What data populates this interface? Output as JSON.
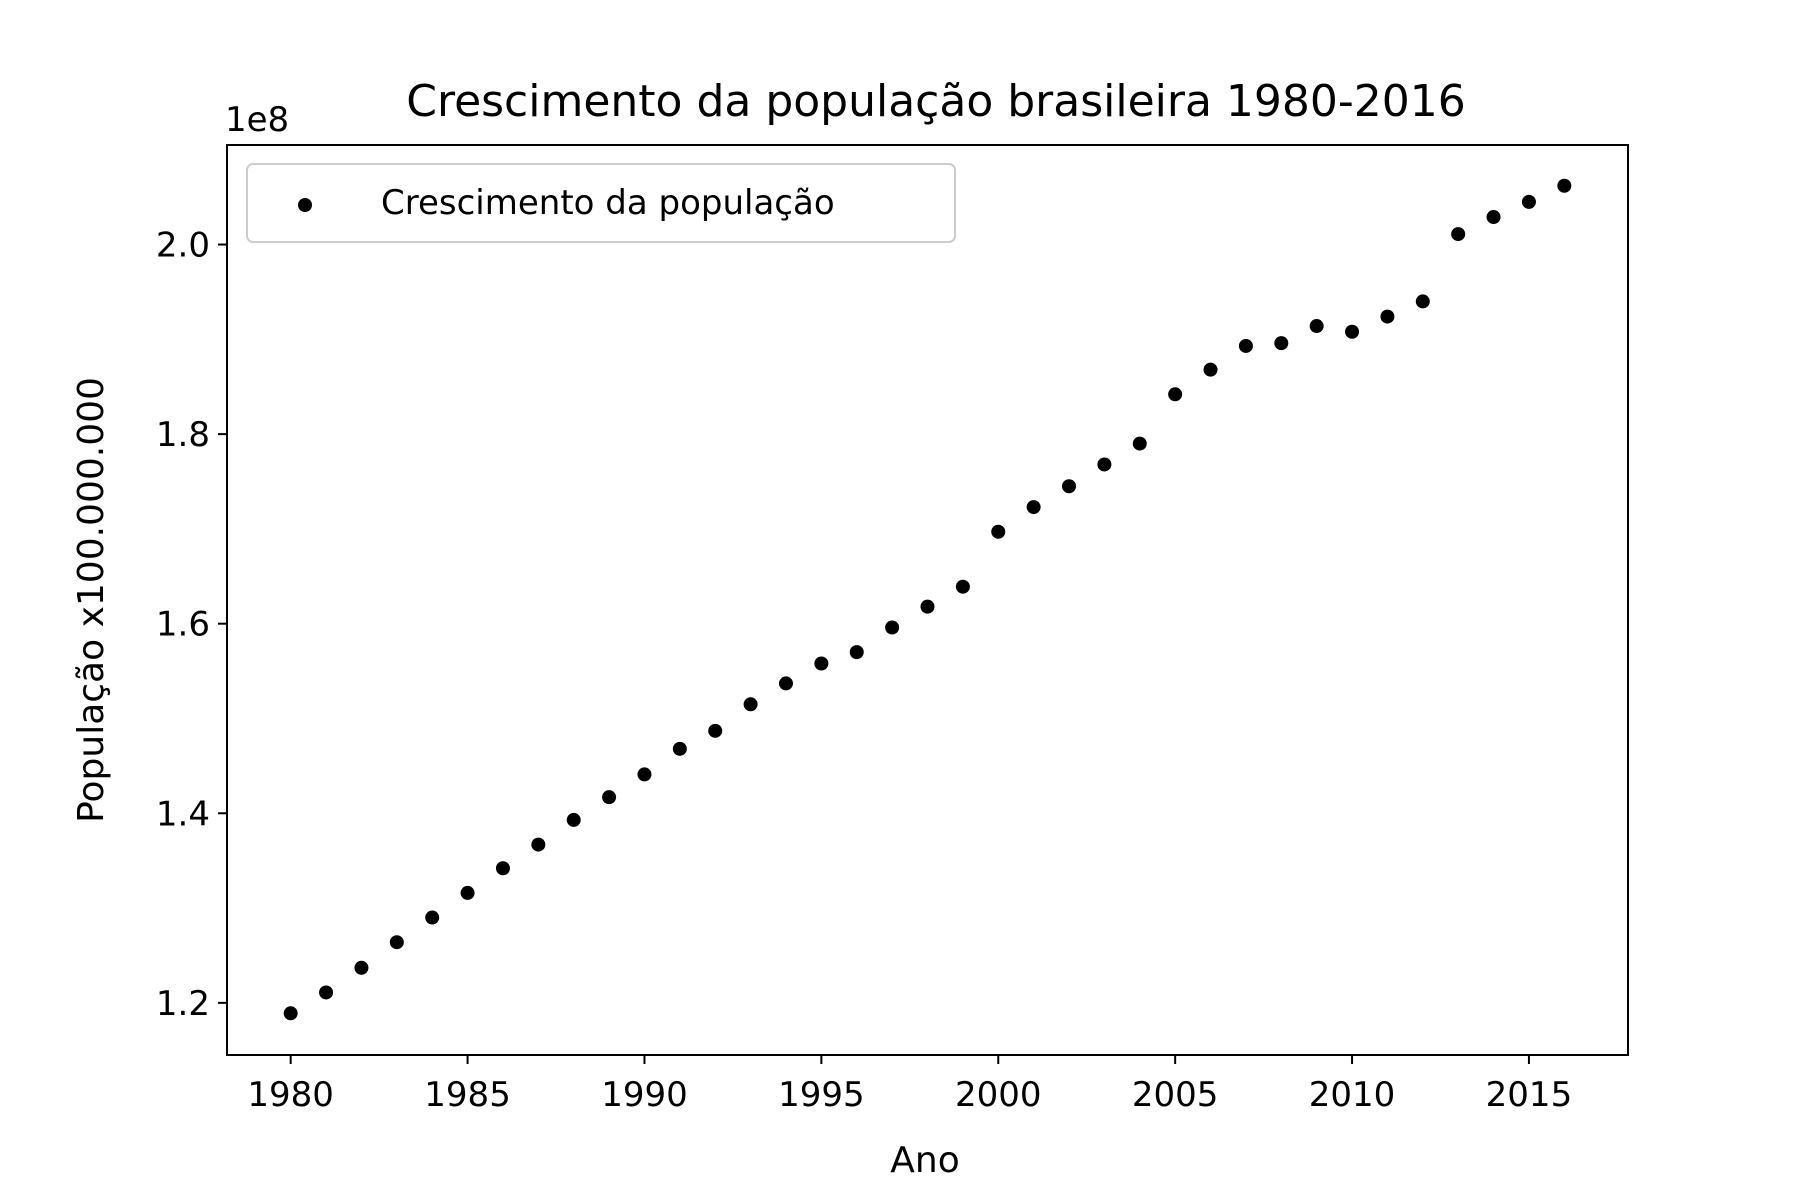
{
  "chart_data": {
    "type": "scatter",
    "title": "Crescimento da população brasileira 1980-2016",
    "xlabel": "Ano",
    "ylabel": "População x100.000.000",
    "y_offset_label": "1e8",
    "xlim": [
      1978.2,
      2017.8
    ],
    "ylim": [
      1.145,
      2.105
    ],
    "xticks": [
      1980,
      1985,
      1990,
      1995,
      2000,
      2005,
      2010,
      2015
    ],
    "xtick_labels": [
      "1980",
      "1985",
      "1990",
      "1995",
      "2000",
      "2005",
      "2010",
      "2015"
    ],
    "yticks": [
      1.2,
      1.4,
      1.6,
      1.8,
      2.0
    ],
    "ytick_labels": [
      "1.2",
      "1.4",
      "1.6",
      "1.8",
      "2.0"
    ],
    "grid": false,
    "legend_position": "top-left",
    "series": [
      {
        "name": "Crescimento da população",
        "color": "#000000",
        "x": [
          1980,
          1981,
          1982,
          1983,
          1984,
          1985,
          1986,
          1987,
          1988,
          1989,
          1990,
          1991,
          1992,
          1993,
          1994,
          1995,
          1996,
          1997,
          1998,
          1999,
          2000,
          2001,
          2002,
          2003,
          2004,
          2005,
          2006,
          2007,
          2008,
          2009,
          2010,
          2011,
          2012,
          2013,
          2014,
          2015,
          2016
        ],
        "y": [
          1.189,
          1.211,
          1.237,
          1.264,
          1.29,
          1.316,
          1.342,
          1.367,
          1.393,
          1.417,
          1.441,
          1.468,
          1.487,
          1.515,
          1.537,
          1.558,
          1.57,
          1.596,
          1.618,
          1.639,
          1.697,
          1.723,
          1.745,
          1.768,
          1.79,
          1.842,
          1.868,
          1.893,
          1.896,
          1.914,
          1.908,
          1.924,
          1.94,
          2.011,
          2.029,
          2.045,
          2.062
        ]
      }
    ]
  }
}
